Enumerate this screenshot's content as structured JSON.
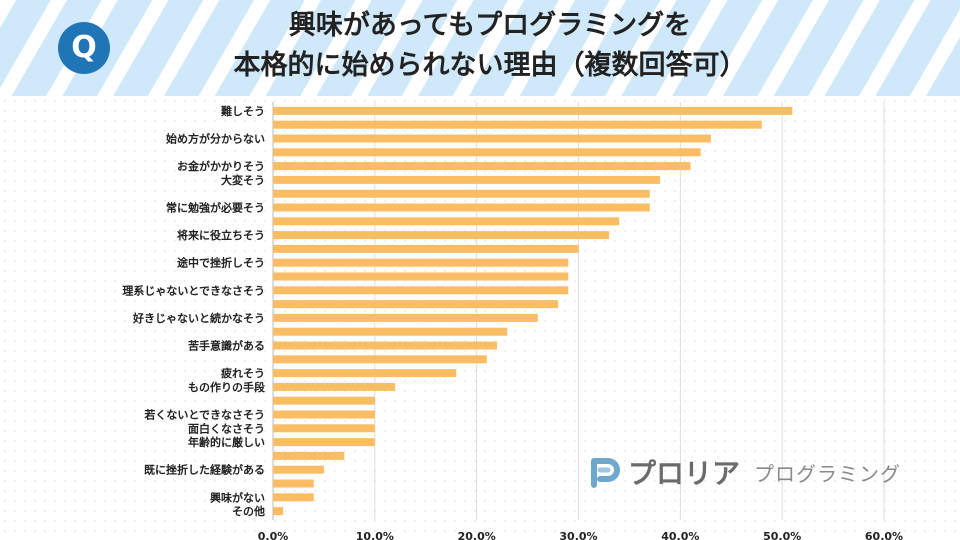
{
  "header": {
    "badge": "Q",
    "title_line1": "興味があってもプログラミングを",
    "title_line2": "本格的に始められない理由（複数回答可）"
  },
  "logo": {
    "name": "プロリア",
    "sub": "プログラミング"
  },
  "colors": {
    "bar": "#fbbd63",
    "header_stripe": "#cfe9fb",
    "badge": "#1f75b5",
    "grid": "#dddddd"
  },
  "chart_data": {
    "type": "bar",
    "orientation": "horizontal",
    "title": "興味があってもプログラミングを本格的に始められない理由（複数回答可）",
    "xlim": [
      0,
      60
    ],
    "x_ticks": [
      "0.0%",
      "10.0%",
      "20.0%",
      "30.0%",
      "40.0%",
      "50.0%",
      "60.0%"
    ],
    "grid": true,
    "categories": [
      "難しそう",
      "",
      "始め方が分からない",
      "",
      "お金がかかりそう",
      "大変そう",
      "",
      "常に勉強が必要そう",
      "",
      "将来に役立ちそう",
      "",
      "途中で挫折しそう",
      "",
      "理系じゃないとできなさそう",
      "",
      "好きじゃないと続かなそう",
      "",
      "苦手意識がある",
      "",
      "疲れそう",
      "もの作りの手段",
      "",
      "若くないとできなさそう",
      "面白くなさそう",
      "年齢的に厳しい",
      "",
      "既に挫折した経験がある",
      "",
      "興味がない",
      "その他"
    ],
    "values": [
      51,
      48,
      43,
      42,
      41,
      38,
      37,
      37,
      34,
      33,
      30,
      29,
      29,
      29,
      28,
      26,
      23,
      22,
      21,
      18,
      12,
      10,
      10,
      10,
      10,
      7,
      5,
      4,
      4,
      1
    ]
  }
}
